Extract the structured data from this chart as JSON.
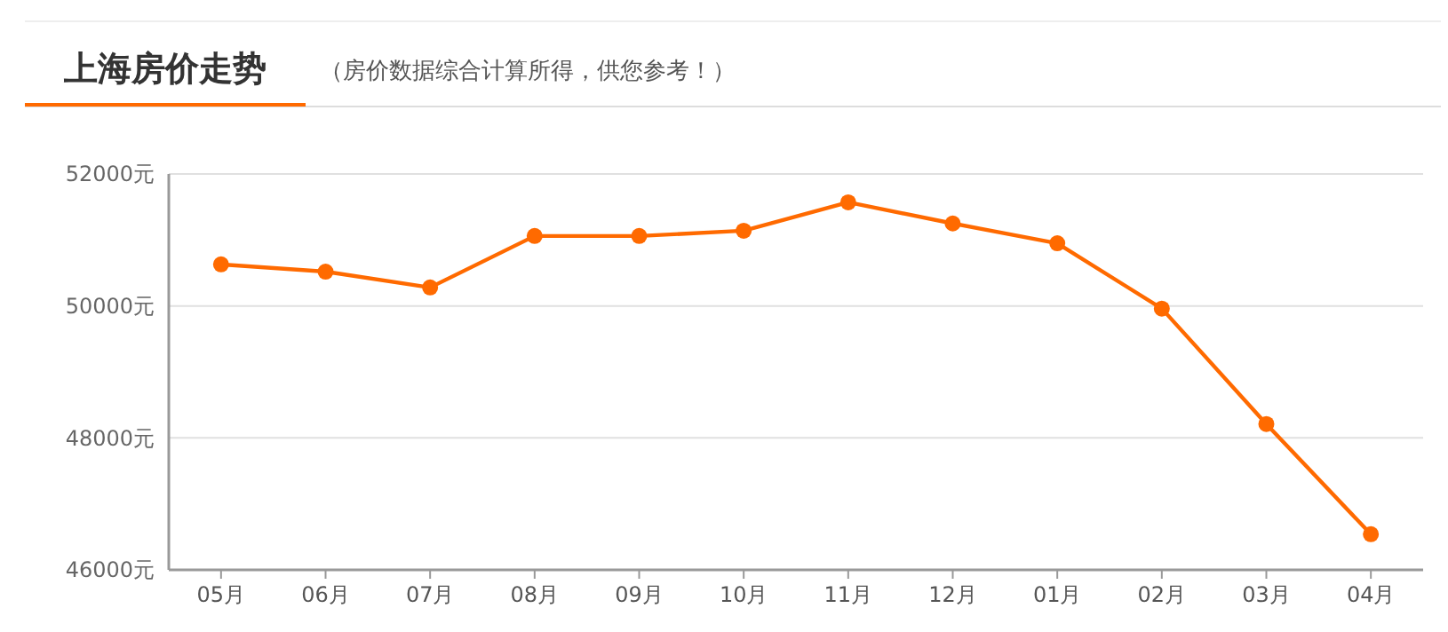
{
  "chart_data": {
    "type": "line",
    "title": "上海房价走势",
    "subtitle": "（房价数据综合计算所得，供您参考！）",
    "categories": [
      "05月",
      "06月",
      "07月",
      "08月",
      "09月",
      "10月",
      "11月",
      "12月",
      "01月",
      "02月",
      "03月",
      "04月"
    ],
    "series": [
      {
        "color": "#ff6a00",
        "values": [
          50630,
          50520,
          50280,
          51060,
          51060,
          51140,
          51570,
          51250,
          50950,
          49960,
          48210,
          46540
        ]
      }
    ],
    "ylim": [
      46000,
      52000
    ],
    "yticks": [
      {
        "value": 46000,
        "label": "46000元"
      },
      {
        "value": 48000,
        "label": "48000元"
      },
      {
        "value": 50000,
        "label": "50000元"
      },
      {
        "value": 52000,
        "label": "52000元"
      }
    ],
    "grid": "y",
    "marker": "circle",
    "line_style": "solid"
  }
}
